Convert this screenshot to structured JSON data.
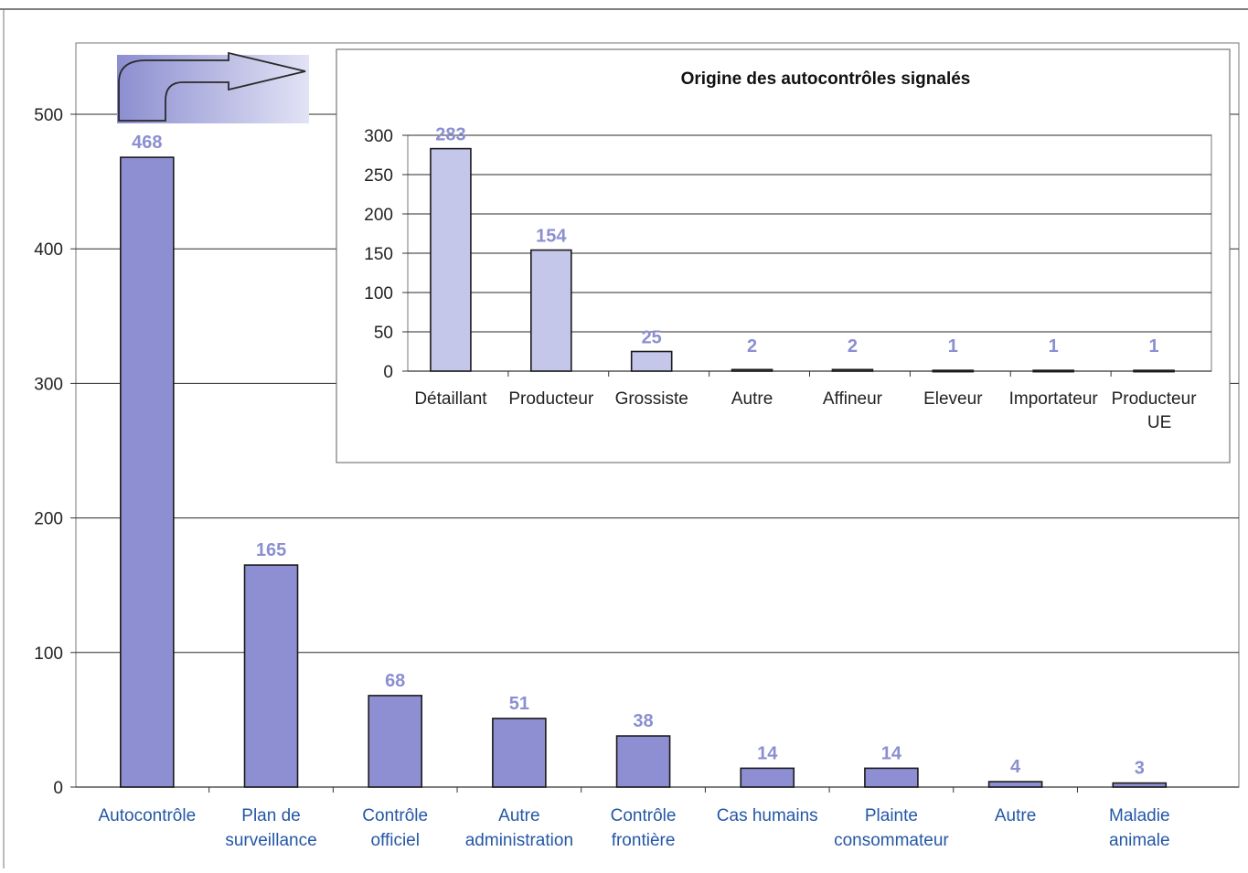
{
  "colors": {
    "main_bar": "#8e8fd3",
    "main_bar_stroke": "#1a1a1a",
    "main_label": "#8b8fd0",
    "main_tick_x": "#2457a6",
    "inset_bar": "#c4c6ea",
    "inset_label": "#8b8fd0",
    "gridline": "#2a2a2a",
    "arrow_box_from": "#8c8ed0",
    "arrow_box_to": "#e2e3f5"
  },
  "arrow_icon": "curved-arrow-icon",
  "chart_data": [
    {
      "id": "main",
      "type": "bar",
      "title": "",
      "xlabel": "",
      "ylabel": "",
      "ylim": [
        0,
        500
      ],
      "yticks": [
        0,
        100,
        200,
        300,
        400,
        500
      ],
      "grid": true,
      "categories": [
        [
          "Autocontrôle"
        ],
        [
          "Plan de",
          "surveillance"
        ],
        [
          "Contrôle",
          "officiel"
        ],
        [
          "Autre",
          "administration"
        ],
        [
          "Contrôle",
          "frontière"
        ],
        [
          "Cas humains"
        ],
        [
          "Plainte",
          "consommateur"
        ],
        [
          "Autre"
        ],
        [
          "Maladie",
          "animale"
        ]
      ],
      "values": [
        468,
        165,
        68,
        51,
        38,
        14,
        14,
        4,
        3
      ]
    },
    {
      "id": "inset",
      "type": "bar",
      "title": "Origine des autocontrôles signalés",
      "xlabel": "",
      "ylabel": "",
      "ylim": [
        0,
        300
      ],
      "yticks": [
        0,
        50,
        100,
        150,
        200,
        250,
        300
      ],
      "grid": true,
      "categories": [
        [
          "Détaillant"
        ],
        [
          "Producteur"
        ],
        [
          "Grossiste"
        ],
        [
          "Autre"
        ],
        [
          "Affineur"
        ],
        [
          "Eleveur"
        ],
        [
          "Importateur"
        ],
        [
          "Producteur",
          "UE"
        ]
      ],
      "values": [
        283,
        154,
        25,
        2,
        2,
        1,
        1,
        1
      ]
    }
  ]
}
